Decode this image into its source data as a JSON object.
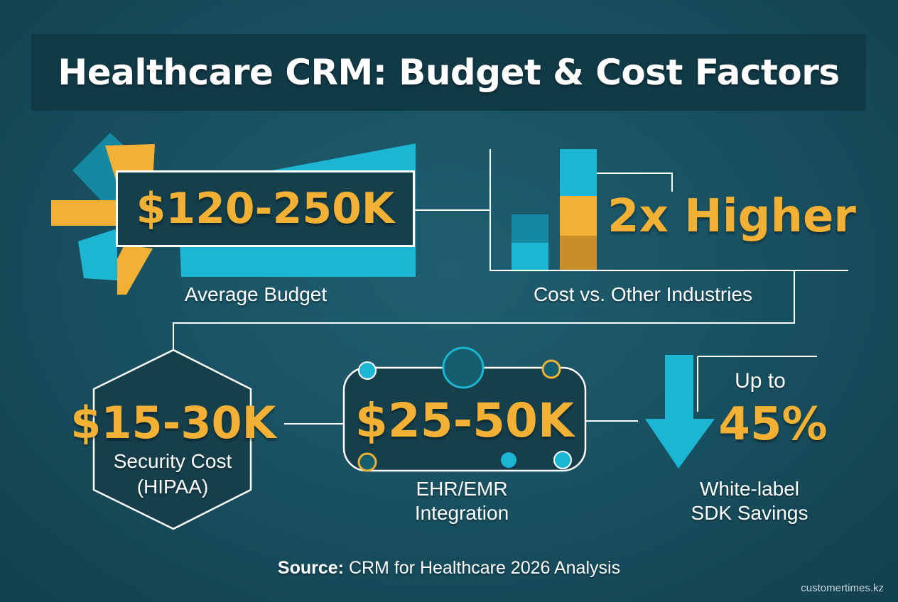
{
  "title": "Healthcare CRM: Budget & Cost Factors",
  "budget": {
    "value": "$120-250K",
    "label": "Average Budget"
  },
  "comparison": {
    "value": "2x Higher",
    "label": "Cost vs. Other Industries",
    "ratio": 2
  },
  "security": {
    "value": "$15-30K",
    "label_line1": "Security Cost",
    "label_line2": "(HIPAA)"
  },
  "integration": {
    "value": "$25-50K",
    "label_line1": "EHR/EMR",
    "label_line2": "Integration"
  },
  "savings": {
    "prefix": "Up to",
    "value": "45%",
    "label_line1": "White-label",
    "label_line2": "SDK Savings"
  },
  "source": {
    "prefix": "Source:",
    "text": "CRM for Healthcare 2026 Analysis"
  },
  "credit": "customertimes.kz",
  "colors": {
    "background": "#1a5565",
    "accent_orange": "#f2b134",
    "accent_cyan": "#1cb5d3",
    "text": "#ffffff"
  }
}
